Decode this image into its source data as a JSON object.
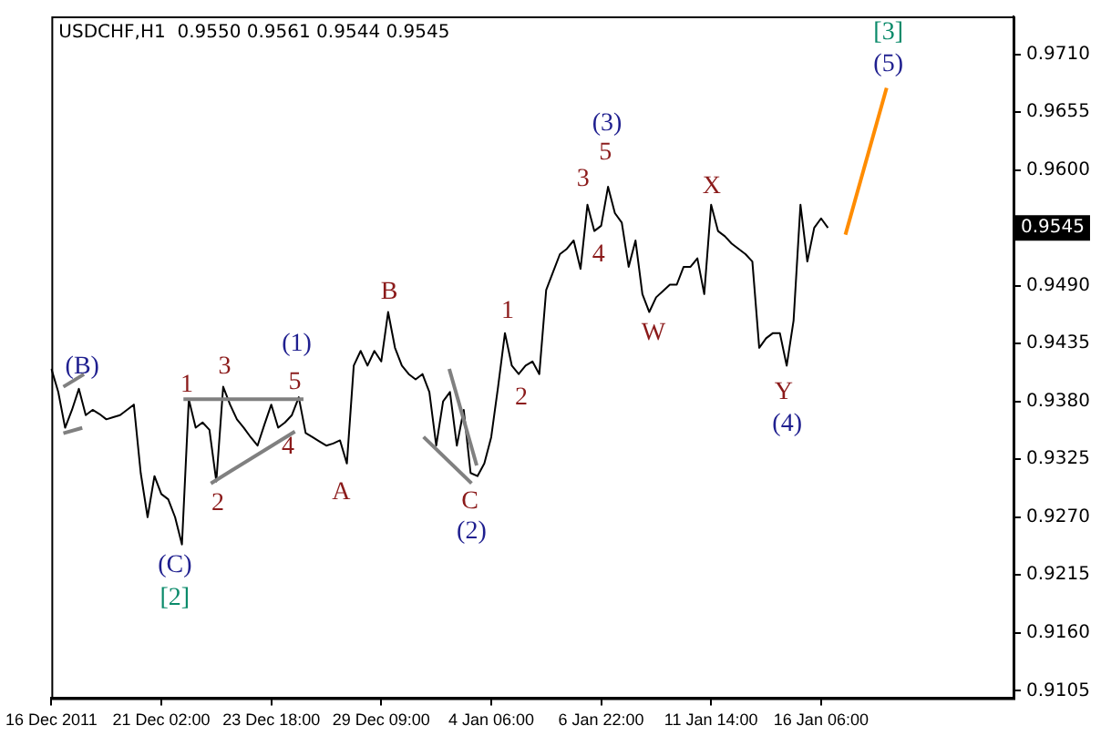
{
  "chart_data": {
    "type": "line",
    "title": "USDCHF,H1  0.9550 0.9561 0.9544 0.9545",
    "categories": [
      "16 Dec 2011",
      null,
      null,
      null,
      null,
      null,
      null,
      null,
      null,
      null,
      null,
      null,
      null,
      null,
      null,
      null,
      "21 Dec 02:00",
      null,
      null,
      null,
      null,
      null,
      null,
      null,
      null,
      null,
      null,
      null,
      null,
      null,
      null,
      null,
      "23 Dec 18:00",
      null,
      null,
      null,
      null,
      null,
      null,
      null,
      null,
      null,
      null,
      null,
      null,
      null,
      null,
      null,
      "29 Dec 09:00",
      null,
      null,
      null,
      null,
      null,
      null,
      null,
      null,
      null,
      null,
      null,
      null,
      null,
      null,
      null,
      "4 Jan 06:00",
      null,
      null,
      null,
      null,
      null,
      null,
      null,
      null,
      null,
      null,
      null,
      null,
      null,
      null,
      null,
      "6 Jan 22:00",
      null,
      null,
      null,
      null,
      null,
      null,
      null,
      null,
      null,
      null,
      null,
      null,
      null,
      null,
      null,
      "11 Jan 14:00",
      null,
      null,
      null,
      null,
      null,
      null,
      null,
      null,
      null,
      null,
      null,
      null,
      null,
      null,
      null,
      "16 Jan 06:00",
      null,
      null,
      null,
      null,
      null,
      null,
      null,
      null,
      null,
      null,
      null,
      null,
      null,
      null,
      null,
      null,
      null,
      null,
      null,
      null,
      null,
      null,
      null,
      null,
      null,
      null,
      null,
      null
    ],
    "ylim": [
      0.9098,
      0.9746
    ],
    "yticks": [
      {
        "value": 0.9105,
        "label": "0.9105"
      },
      {
        "value": 0.916,
        "label": "0.9160"
      },
      {
        "value": 0.9215,
        "label": "0.9215"
      },
      {
        "value": 0.927,
        "label": "0.9270"
      },
      {
        "value": 0.9325,
        "label": "0.9325"
      },
      {
        "value": 0.938,
        "label": "0.9380"
      },
      {
        "value": 0.9435,
        "label": "0.9435"
      },
      {
        "value": 0.949,
        "label": "0.9490"
      },
      {
        "value": 0.9545,
        "label": "0.9545"
      },
      {
        "value": 0.96,
        "label": "0.9600"
      },
      {
        "value": 0.9655,
        "label": "0.9655"
      },
      {
        "value": 0.971,
        "label": "0.9710"
      }
    ],
    "grid": false,
    "legend": false,
    "marker": "none",
    "line_style": "solid",
    "series": [
      {
        "color": "#000000",
        "values": [
          0.9411,
          0.9389,
          0.9355,
          0.9372,
          0.9392,
          0.9367,
          0.9372,
          0.9368,
          0.9363,
          0.9365,
          0.9367,
          0.9372,
          0.9377,
          0.9312,
          0.927,
          0.9309,
          0.9292,
          0.9287,
          0.927,
          0.9244,
          0.9382,
          0.9355,
          0.936,
          0.9353,
          0.9304,
          0.9394,
          0.9377,
          0.9363,
          0.9355,
          0.9346,
          0.9338,
          0.9358,
          0.9377,
          0.9355,
          0.936,
          0.9367,
          0.9384,
          0.935,
          0.9346,
          0.9342,
          0.9338,
          0.934,
          0.9343,
          0.9321,
          0.9414,
          0.9428,
          0.9414,
          0.9428,
          0.9418,
          0.9465,
          0.9431,
          0.9414,
          0.9406,
          0.9401,
          0.9406,
          0.9389,
          0.9338,
          0.938,
          0.9389,
          0.9338,
          0.9372,
          0.9312,
          0.9309,
          0.9321,
          0.9346,
          0.9394,
          0.9445,
          0.9414,
          0.9406,
          0.9414,
          0.9418,
          0.9406,
          0.9486,
          0.9503,
          0.952,
          0.9525,
          0.9533,
          0.9506,
          0.9567,
          0.9542,
          0.9547,
          0.9584,
          0.9559,
          0.955,
          0.9508,
          0.9533,
          0.9482,
          0.9465,
          0.9479,
          0.9485,
          0.9491,
          0.9491,
          0.9508,
          0.9508,
          0.9516,
          0.9482,
          0.9567,
          0.9542,
          0.9537,
          0.953,
          0.9525,
          0.952,
          0.9513,
          0.9431,
          0.944,
          0.9445,
          0.9445,
          0.9414,
          0.9457,
          0.9567,
          0.9513,
          0.9545,
          0.9554,
          0.9545,
          null,
          null,
          null,
          null,
          null,
          null,
          null,
          null,
          null,
          null,
          null,
          null,
          null,
          null,
          null,
          null,
          null,
          null,
          null,
          null,
          null,
          null,
          null,
          null,
          null,
          null,
          null
        ]
      }
    ],
    "annotations": [
      "(B)",
      {
        "text": "1",
        "y": 0.9382
      },
      "3",
      {
        "text": "5",
        "y": 0.9384
      },
      "(1)",
      "2",
      {
        "text": "4",
        "y": 0.9351
      },
      "A",
      "(C)",
      "[2]",
      "B",
      "C",
      "(2)",
      "1",
      "2",
      "3",
      "5",
      "(3)",
      "4",
      "W",
      "X",
      "Y",
      "(4)",
      "(5)",
      "[3]"
    ]
  }
}
